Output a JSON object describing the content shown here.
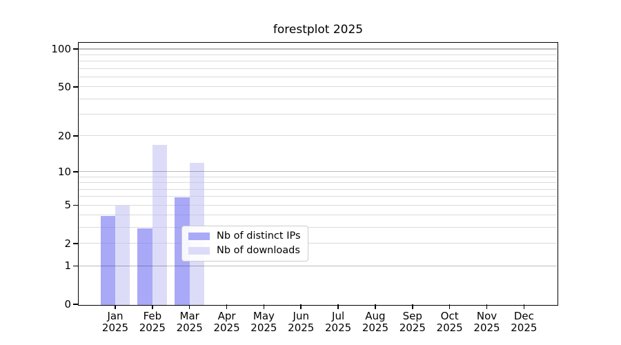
{
  "chart_data": {
    "type": "bar",
    "title": "forestplot 2025",
    "categories": [
      "Jan",
      "Feb",
      "Mar",
      "Apr",
      "May",
      "Jun",
      "Jul",
      "Aug",
      "Sep",
      "Oct",
      "Nov",
      "Dec"
    ],
    "category_year": "2025",
    "series": [
      {
        "name": "Nb of distinct IPs",
        "color": "#a9a9f8",
        "values": [
          4,
          3,
          6,
          0,
          0,
          0,
          0,
          0,
          0,
          0,
          0,
          0
        ]
      },
      {
        "name": "Nb of downloads",
        "color": "#dcdcf9",
        "values": [
          5,
          17,
          12,
          0,
          0,
          0,
          0,
          0,
          0,
          0,
          0,
          0
        ]
      }
    ],
    "xlabel": "",
    "ylabel": "",
    "yscale": "log1p",
    "ylim": [
      0,
      112
    ],
    "yticks": [
      "0",
      "1",
      "2",
      "5",
      "10",
      "20",
      "50",
      "100"
    ],
    "grid": "on",
    "grid_major_values": [
      1,
      10,
      100
    ],
    "grid_minor_values": [
      2,
      3,
      4,
      5,
      6,
      7,
      8,
      9,
      20,
      30,
      40,
      50,
      60,
      70,
      80,
      90
    ],
    "legend_position": "lower center",
    "bar_width_frac": 0.4,
    "colors": {
      "axis": "#000000",
      "background": "#ffffff",
      "grid_major": "#bdbdbd",
      "grid_minor": "#ececec"
    }
  }
}
